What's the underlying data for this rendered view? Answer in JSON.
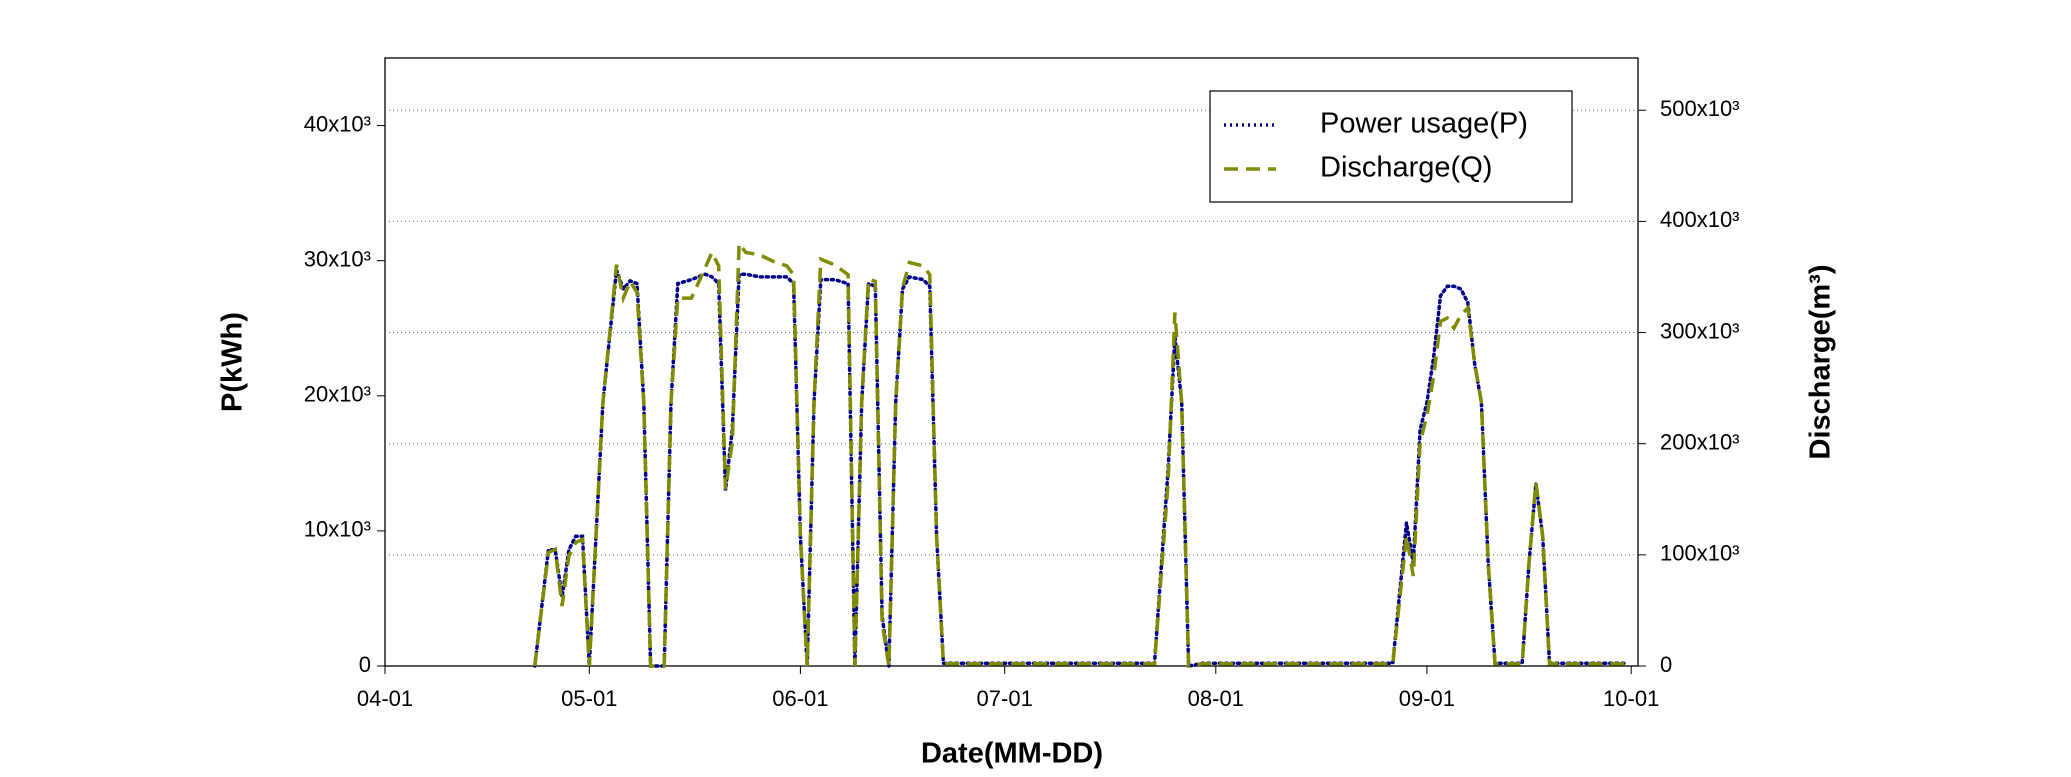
{
  "chart_data": {
    "type": "line",
    "xlabel": "Date(MM-DD)",
    "ylabel": "P(kWh)",
    "y2label": "Discharge(m³)",
    "x": [
      "04-23",
      "04-25",
      "04-26",
      "04-27",
      "04-28",
      "04-29",
      "04-30",
      "05-01",
      "05-03",
      "05-05",
      "05-06",
      "05-07",
      "05-08",
      "05-09",
      "05-10",
      "05-12",
      "05-13",
      "05-14",
      "05-16",
      "05-18",
      "05-19",
      "05-20",
      "05-21",
      "05-22",
      "05-23",
      "05-24",
      "05-26",
      "05-28",
      "05-30",
      "05-31",
      "06-01",
      "06-02",
      "06-03",
      "06-04",
      "06-06",
      "06-08",
      "06-09",
      "06-10",
      "06-11",
      "06-12",
      "06-13",
      "06-14",
      "06-15",
      "06-16",
      "06-17",
      "06-19",
      "06-20",
      "06-21",
      "06-22",
      "07-23",
      "07-25",
      "07-26",
      "07-27",
      "07-28",
      "07-30",
      "08-27",
      "08-29",
      "08-30",
      "08-31",
      "09-01",
      "09-02",
      "09-03",
      "09-04",
      "09-05",
      "09-06",
      "09-07",
      "09-08",
      "09-09",
      "09-10",
      "09-11",
      "09-15",
      "09-16",
      "09-17",
      "09-18",
      "09-19",
      "09-30"
    ],
    "series": [
      {
        "name": "Power usage(P)",
        "color": "#00008b",
        "dash": "dotted",
        "axis": "y",
        "values": [
          0,
          8600,
          8600,
          5100,
          8600,
          9600,
          9600,
          0,
          19500,
          29300,
          27900,
          28500,
          28300,
          19500,
          0,
          0,
          19500,
          28300,
          28600,
          29000,
          28800,
          28300,
          13000,
          17500,
          29000,
          29000,
          28800,
          28800,
          28800,
          28300,
          9600,
          0,
          19500,
          28600,
          28600,
          28300,
          0,
          19500,
          28300,
          28100,
          3700,
          0,
          19500,
          27900,
          28800,
          28600,
          28100,
          9600,
          200,
          200,
          14500,
          24400,
          19500,
          0,
          200,
          200,
          10600,
          7600,
          17500,
          19500,
          22900,
          27400,
          28100,
          28100,
          27900,
          26900,
          22400,
          19500,
          7600,
          200,
          200,
          7600,
          13500,
          9600,
          200,
          200
        ]
      },
      {
        "name": "Discharge(Q)",
        "color": "#7f8c00",
        "dash": "dashed",
        "axis": "y2",
        "values": [
          0,
          102000,
          105000,
          54000,
          99000,
          111000,
          114000,
          0,
          237000,
          361000,
          331000,
          346000,
          336000,
          237000,
          0,
          0,
          237000,
          331000,
          331000,
          358000,
          372000,
          360000,
          159000,
          201000,
          380000,
          372000,
          370000,
          364000,
          360000,
          352000,
          117000,
          0,
          237000,
          366000,
          361000,
          352000,
          0,
          237000,
          348000,
          346000,
          39000,
          0,
          237000,
          340000,
          363000,
          360000,
          352000,
          117000,
          2000,
          2000,
          165000,
          318000,
          237000,
          0,
          2000,
          2000,
          117000,
          81000,
          201000,
          225000,
          261000,
          310000,
          313000,
          304000,
          316000,
          322000,
          273000,
          237000,
          93000,
          2000,
          2000,
          93000,
          165000,
          117000,
          2000,
          2000
        ]
      }
    ],
    "xlim": [
      "04-01",
      "10-02"
    ],
    "xticks": [
      "04-01",
      "05-01",
      "06-01",
      "07-01",
      "08-01",
      "09-01",
      "10-01"
    ],
    "ylim": [
      0,
      45000
    ],
    "yticks": [
      0,
      {
        "value": 10000,
        "label": "10x10³"
      },
      {
        "value": 20000,
        "label": "20x10³"
      },
      {
        "value": 30000,
        "label": "30x10³"
      },
      {
        "value": 40000,
        "label": "40x10³"
      }
    ],
    "y2lim": [
      0,
      547000
    ],
    "y2ticks": [
      0,
      {
        "value": 100000,
        "label": "100x10³"
      },
      {
        "value": 200000,
        "label": "200x10³"
      },
      {
        "value": 300000,
        "label": "300x10³"
      },
      {
        "value": 400000,
        "label": "400x10³"
      },
      {
        "value": 500000,
        "label": "500x10³"
      }
    ],
    "grid": "y2",
    "legend": "upper right"
  }
}
